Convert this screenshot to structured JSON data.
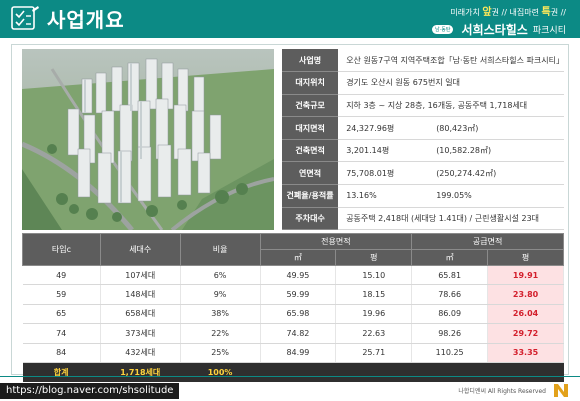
{
  "header": {
    "title": "사업개요",
    "tagline_parts": [
      "미래가치",
      "앞",
      "권",
      "//",
      "내집마련",
      "특",
      "권",
      "//"
    ],
    "brand_pill": "남·동탄",
    "brand_name": "서희스타힐스",
    "brand_sub": "파크시티",
    "color_primary": "#0c8a85"
  },
  "info": [
    {
      "label": "사업명",
      "value": "오산 원동7구역 지역주택조합「남·동탄 서희스타힐스 파크시티」",
      "value2": ""
    },
    {
      "label": "대지위치",
      "value": "경기도 오산시 원동 675번지 일대",
      "value2": ""
    },
    {
      "label": "건축규모",
      "value": "지하 3층 ~ 지상 28층, 16개동, 공동주택 1,718세대",
      "value2": ""
    },
    {
      "label": "대지면적",
      "value": "24,327.96평",
      "value2": "(80,423㎡)"
    },
    {
      "label": "건축면적",
      "value": "3,201.14평",
      "value2": "(10,582.28㎡)"
    },
    {
      "label": "연면적",
      "value": "75,708.01평",
      "value2": "(250,274.42㎡)"
    },
    {
      "label": "건폐율/용적률",
      "value": "13.16%",
      "value2": "199.05%"
    },
    {
      "label": "주차대수",
      "value": "공동주택 2,418대 (세대당 1.41대)  /  근린생활시설 23대",
      "value2": ""
    }
  ],
  "table": {
    "headers": {
      "type": "타입c",
      "households": "세대수",
      "ratio": "비율",
      "exclusive": "전용면적",
      "supply": "공급면적",
      "sqm": "㎡",
      "pyeong": "평"
    },
    "rows": [
      {
        "type": "49",
        "households": "107세대",
        "ratio": "6%",
        "ex_sqm": "49.95",
        "ex_py": "15.10",
        "sup_sqm": "65.81",
        "sup_py": "19.91"
      },
      {
        "type": "59",
        "households": "148세대",
        "ratio": "9%",
        "ex_sqm": "59.99",
        "ex_py": "18.15",
        "sup_sqm": "78.66",
        "sup_py": "23.80"
      },
      {
        "type": "65",
        "households": "658세대",
        "ratio": "38%",
        "ex_sqm": "65.98",
        "ex_py": "19.96",
        "sup_sqm": "86.09",
        "sup_py": "26.04"
      },
      {
        "type": "74",
        "households": "373세대",
        "ratio": "22%",
        "ex_sqm": "74.82",
        "ex_py": "22.63",
        "sup_sqm": "98.26",
        "sup_py": "29.72"
      },
      {
        "type": "84",
        "households": "432세대",
        "ratio": "25%",
        "ex_sqm": "84.99",
        "ex_py": "25.71",
        "sup_sqm": "110.25",
        "sup_py": "33.35"
      }
    ],
    "total": {
      "label": "합계",
      "households": "1,718세대",
      "ratio": "100%"
    }
  },
  "footer": {
    "url": "https://blog.naver.com/shsolitude",
    "copyright": "나합디엔씨 All Rights Reserved"
  }
}
